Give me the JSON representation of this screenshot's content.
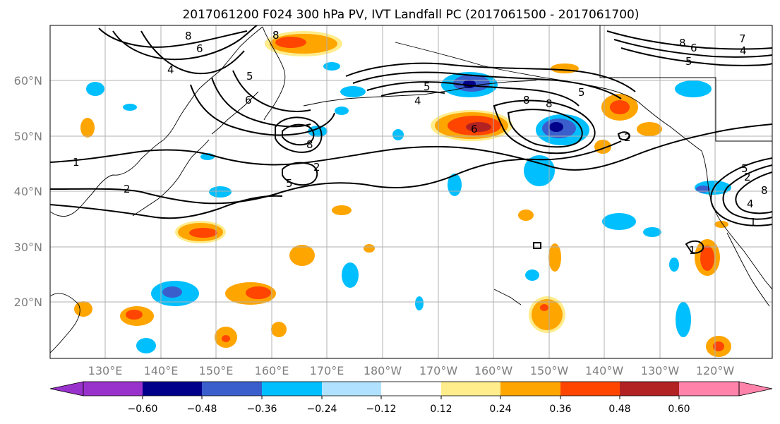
{
  "title": "2017061200 F024 300 hPa PV, IVT Landfall PC (2017061500 - 2017061700)",
  "map": {
    "lat_labels": [
      "60°N",
      "50°N",
      "40°N",
      "30°N",
      "20°N"
    ],
    "lon_labels": [
      "130°E",
      "140°E",
      "150°E",
      "160°E",
      "170°E",
      "180°W",
      "170°W",
      "160°W",
      "150°W",
      "140°W",
      "130°W",
      "120°W"
    ],
    "contour_labels": [
      "1",
      "2",
      "8",
      "6",
      "4",
      "5",
      "6",
      "8",
      "5",
      "5",
      "4",
      "8",
      "5",
      "8",
      "6",
      "4",
      "5",
      "7",
      "8",
      "6",
      "8",
      "2",
      "2",
      "1",
      "1",
      "2",
      "8",
      "4",
      "5"
    ]
  },
  "colorbar": {
    "tick_labels": [
      "−0.60",
      "−0.48",
      "−0.36",
      "−0.24",
      "−0.12",
      "0.12",
      "0.24",
      "0.36",
      "0.48",
      "0.60"
    ],
    "colors": [
      "#9932cc",
      "#00008b",
      "#3a5fcd",
      "#00bfff",
      "#b0e2ff",
      "#ffffff",
      "#ffec8b",
      "#ffa500",
      "#ff4500",
      "#b22222",
      "#ff82ab"
    ]
  },
  "colors": {
    "grid": "#b0b0b0",
    "contour": "#000000",
    "neg_light": "#b0e2ff",
    "neg": "#00bfff",
    "neg_mid": "#3a5fcd",
    "neg_dark": "#00008b",
    "pos_light": "#ffec8b",
    "pos": "#ffa500",
    "pos_mid": "#ff4500",
    "pos_dark": "#b22222"
  }
}
